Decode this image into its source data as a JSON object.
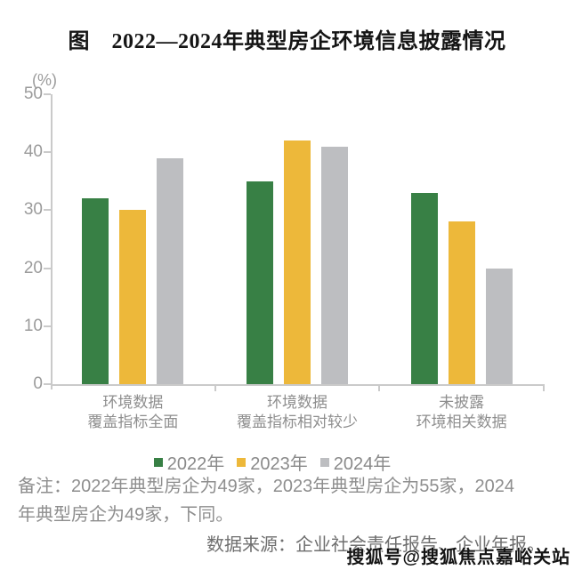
{
  "title": "图　2022—2024年典型房企环境信息披露情况",
  "chart_data": {
    "type": "bar",
    "title": "2022—2024年典型房企环境信息披露情况",
    "unit_label": "(%)",
    "categories": [
      [
        "环境数据",
        "覆盖指标全面"
      ],
      [
        "环境数据",
        "覆盖指标相对较少"
      ],
      [
        "未披露",
        "环境相关数据"
      ]
    ],
    "series": [
      {
        "name": "2022年",
        "color": "#388045",
        "values": [
          32,
          35,
          33
        ]
      },
      {
        "name": "2023年",
        "color": "#EDB83A",
        "values": [
          30,
          42,
          28
        ]
      },
      {
        "name": "2024年",
        "color": "#BDBEC1",
        "values": [
          39,
          41,
          20
        ]
      }
    ],
    "ylim": [
      0,
      50
    ],
    "yticks": [
      0,
      10,
      20,
      30,
      40,
      50
    ],
    "grid": false,
    "legend_position": "bottom"
  },
  "note": {
    "lines": [
      "备注：2022年典型房企为49家，2023年典型房企为55家，2024",
      "年典型房企为49家，下同。"
    ]
  },
  "source_label": "数据来源：企业社会责任报告、企业年报。",
  "watermark": "搜狐号@搜狐焦点嘉峪关站",
  "colors": {
    "title": "#151515",
    "axis": "#CACACA",
    "tick_label": "#9B9B9B",
    "category_label": "#8E8E8E",
    "legend_label": "#8A8A8A",
    "note": "#8E8E8E",
    "source": "#6E6E6E",
    "green": "#388045",
    "yellow": "#EDB83A",
    "gray": "#BDBEC1"
  }
}
